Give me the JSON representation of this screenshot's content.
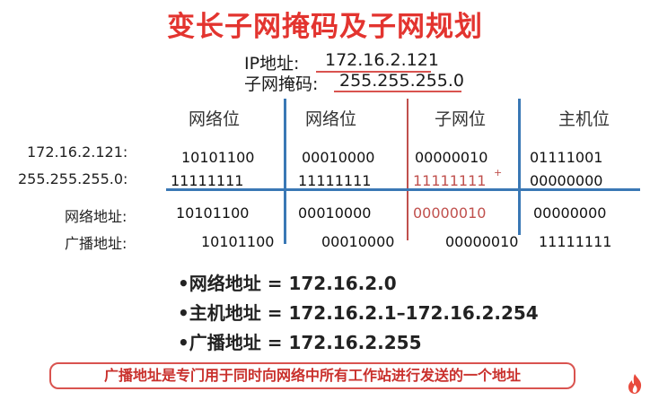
{
  "title": "变长子网掩码及子网规划",
  "ip": {
    "label": "IP地址:",
    "value": "172.16.2.121"
  },
  "mask": {
    "label": "子网掩码:",
    "value": "255.255.255.0"
  },
  "headers": [
    "网络位",
    "网络位",
    "子网位",
    "主机位"
  ],
  "rows": [
    {
      "label": "172.16.2.121:",
      "bits": [
        "10101100",
        "00010000",
        "00000010",
        "01111001"
      ]
    },
    {
      "label": "255.255.255.0:",
      "bits": [
        "11111111",
        "11111111",
        "11111111",
        "00000000"
      ],
      "mark": "+"
    },
    {
      "label": "网络地址:",
      "bits": [
        "10101100",
        "00010000",
        "00000010",
        "00000000"
      ]
    },
    {
      "label": "广播地址:",
      "bits": [
        "10101100",
        "00010000",
        "00000010",
        "11111111"
      ]
    }
  ],
  "bullets": [
    "•网络地址 = 172.16.2.0",
    "•主机地址 = 172.16.2.1–172.16.2.254",
    "•广播地址 = 172.16.2.255"
  ],
  "note": "广播地址是专门用于同时向网络中所有工作站进行发送的一个地址",
  "colors": {
    "title": "#e3342f",
    "blue_line": "#3a78b5",
    "red_line": "#c0504d"
  },
  "icons": {
    "logo": "flame-logo-icon"
  }
}
